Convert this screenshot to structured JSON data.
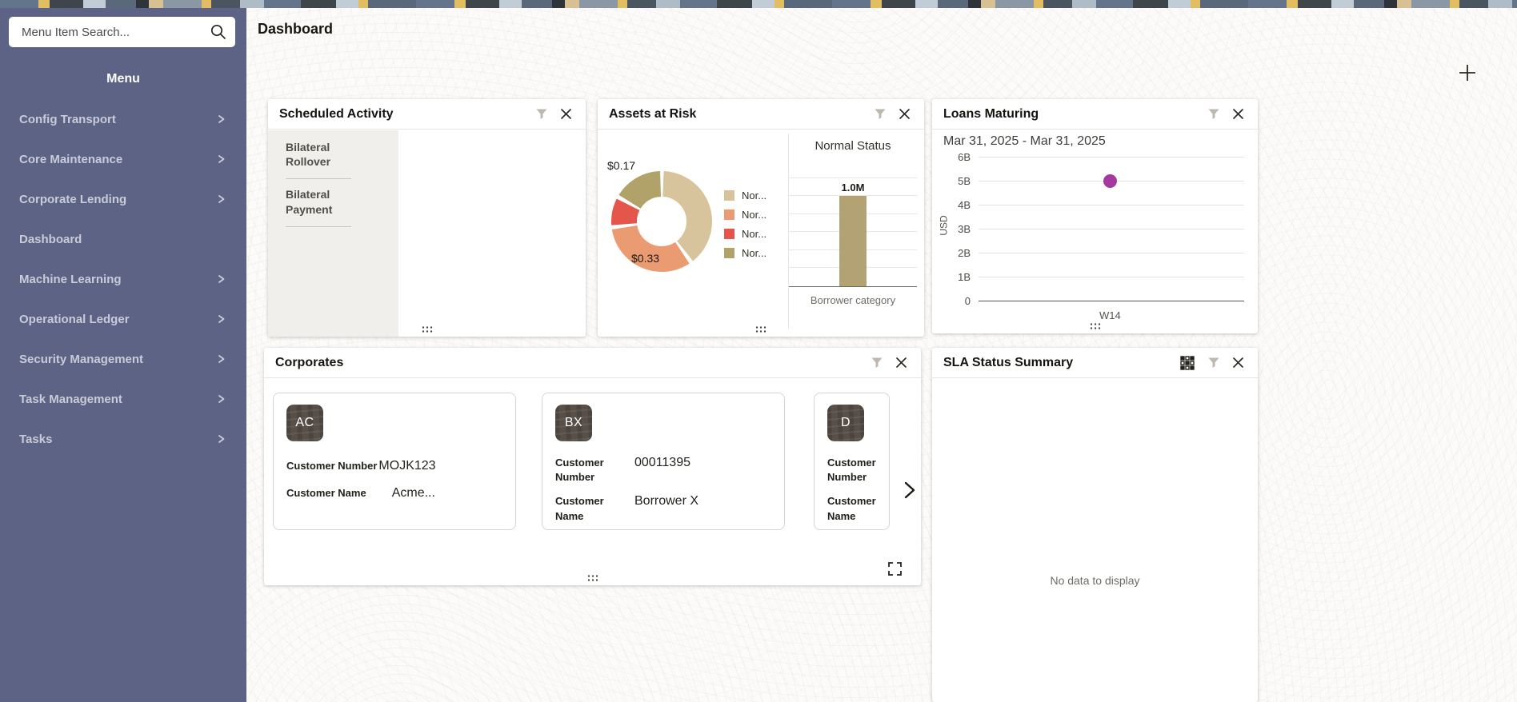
{
  "sidebar": {
    "search_placeholder": "Menu Item Search...",
    "menu_title": "Menu",
    "items": [
      {
        "label": "Config Transport",
        "expandable": true
      },
      {
        "label": "Core Maintenance",
        "expandable": true
      },
      {
        "label": "Corporate Lending",
        "expandable": true
      },
      {
        "label": "Dashboard",
        "expandable": false
      },
      {
        "label": "Machine Learning",
        "expandable": true
      },
      {
        "label": "Operational Ledger",
        "expandable": true
      },
      {
        "label": "Security Management",
        "expandable": true
      },
      {
        "label": "Task Management",
        "expandable": true
      },
      {
        "label": "Tasks",
        "expandable": true
      }
    ]
  },
  "page": {
    "title": "Dashboard"
  },
  "widgets": {
    "scheduled_activity": {
      "title": "Scheduled Activity",
      "items": [
        "Bilateral Rollover",
        "Bilateral Payment"
      ]
    },
    "assets_at_risk": {
      "title": "Assets at Risk"
    },
    "loans_maturing": {
      "title": "Loans Maturing",
      "subtitle": "Mar 31, 2025 - Mar 31, 2025"
    },
    "corporates": {
      "title": "Corporates",
      "cards": [
        {
          "initials": "AC",
          "number_label": "Customer Number",
          "number_value": "MOJK123",
          "name_label": "Customer Name",
          "name_value": "Acme..."
        },
        {
          "initials": "BX",
          "number_label": "Customer Number",
          "number_value": "00011395",
          "name_label": "Customer Name",
          "name_value": "Borrower X"
        },
        {
          "initials": "D",
          "number_label": "Customer Number",
          "number_value": "",
          "name_label": "Customer Name",
          "name_value": ""
        }
      ]
    },
    "sla_status_summary": {
      "title": "SLA Status Summary",
      "empty_message": "No data to display"
    }
  },
  "chart_data": [
    {
      "id": "assets_at_risk_donut",
      "type": "pie",
      "title": "Assets at Risk",
      "legend_position": "right",
      "slices": [
        {
          "label": "Nor...",
          "value": 0.4,
          "color": "#d8c49c",
          "data_label": ""
        },
        {
          "label": "Nor...",
          "value": 0.33,
          "color": "#eb9b72",
          "data_label": "$0.33"
        },
        {
          "label": "Nor...",
          "value": 0.1,
          "color": "#e4564b",
          "data_label": ""
        },
        {
          "label": "Nor...",
          "value": 0.17,
          "color": "#b1a26a",
          "data_label": "$0.17"
        }
      ]
    },
    {
      "id": "normal_status_bar",
      "type": "bar",
      "title": "Normal Status",
      "categories": [
        "Borrower category"
      ],
      "values": [
        1000000
      ],
      "value_labels": [
        "1.0M"
      ],
      "xlabel": "Borrower category",
      "ylim": [
        0,
        1400000
      ],
      "grid_step": 200000,
      "bar_color": "#b3a273",
      "grid": true
    },
    {
      "id": "loans_maturing_scatter",
      "type": "scatter",
      "subtitle": "Mar 31, 2025 - Mar 31, 2025",
      "ylabel": "USD",
      "yticks": [
        "0",
        "1B",
        "2B",
        "3B",
        "4B",
        "5B",
        "6B"
      ],
      "ylim": [
        0,
        6000000000
      ],
      "x_categories": [
        "W14"
      ],
      "points": [
        {
          "x": "W14",
          "y": 5000000000
        }
      ],
      "point_color": "#a43a9e",
      "grid": true
    }
  ],
  "colors": {
    "sidebar_bg": "#5d6384",
    "scatter_point": "#a43a9e",
    "bar": "#b3a273",
    "donut_palette": [
      "#d8c49c",
      "#eb9b72",
      "#e4564b",
      "#b1a26a"
    ]
  },
  "icons": {
    "search-icon": "magnifier",
    "filter-icon": "funnel",
    "close-icon": "x",
    "chevron-right-icon": ">",
    "grid-icon": "3x3-squares",
    "drag-handle-icon": "dots",
    "expand-icon": "corner-brackets",
    "add-icon": "+",
    "carousel-next-icon": ">"
  }
}
